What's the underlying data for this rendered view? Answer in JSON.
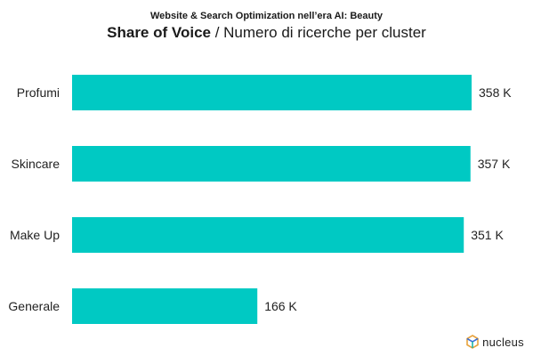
{
  "header": {
    "supertitle": "Website & Search Optimization nell’era AI: Beauty",
    "title_bold": "Share of Voice",
    "title_rest": " / Numero di ricerche per cluster"
  },
  "chart_data": {
    "type": "bar",
    "orientation": "horizontal",
    "categories": [
      "Profumi",
      "Skincare",
      "Make Up",
      "Generale"
    ],
    "values": [
      358,
      357,
      351,
      166
    ],
    "value_labels": [
      "358 K",
      "357 K",
      "351 K",
      "166 K"
    ],
    "unit": "K",
    "bar_color": "#00c9c3",
    "xlim": [
      0,
      358
    ],
    "grid": false,
    "legend": "none"
  },
  "brand": {
    "name": "nucleus"
  }
}
